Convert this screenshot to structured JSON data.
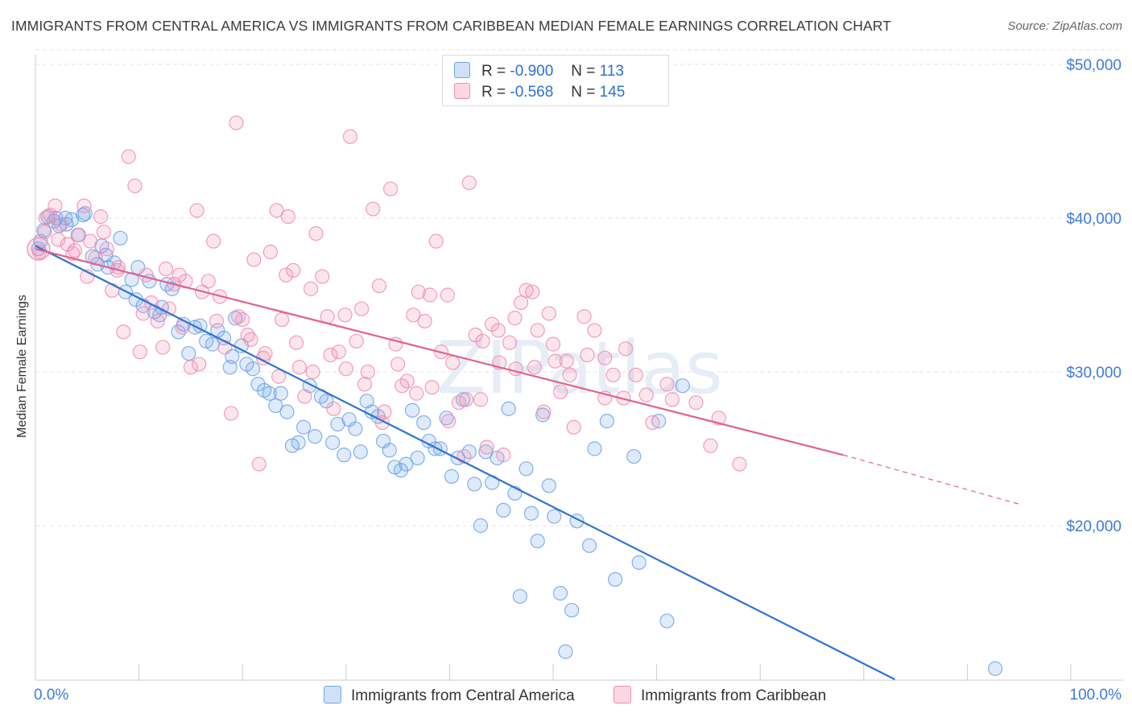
{
  "header": {
    "title": "IMMIGRANTS FROM CENTRAL AMERICA VS IMMIGRANTS FROM CARIBBEAN MEDIAN FEMALE EARNINGS CORRELATION CHART",
    "source": "Source: ZipAtlas.com"
  },
  "watermark": {
    "text": "ZIPatlas"
  },
  "stats": [
    {
      "r_label": "R =",
      "r_value": "-0.900",
      "n_label": "N =",
      "n_value": "113",
      "color": "#6fa3e8"
    },
    {
      "r_label": "R =",
      "r_value": "-0.568",
      "n_label": "N =",
      "n_value": "145",
      "color": "#f08db0"
    }
  ],
  "legend": [
    {
      "label": "Immigrants from Central America",
      "color": "#6fa3e8"
    },
    {
      "label": "Immigrants from Caribbean",
      "color": "#f08db0"
    }
  ],
  "chart_data": {
    "type": "scatter",
    "title": "IMMIGRANTS FROM CENTRAL AMERICA VS IMMIGRANTS FROM CARIBBEAN MEDIAN FEMALE EARNINGS CORRELATION CHART",
    "xlabel": "",
    "ylabel": "Median Female Earnings",
    "xlim": [
      0,
      100
    ],
    "ylim": [
      10000,
      51000
    ],
    "x_tick_labels": [
      "0.0%",
      "100.0%"
    ],
    "y_ticks": [
      20000,
      30000,
      40000,
      50000
    ],
    "y_tick_labels": [
      "$20,000",
      "$30,000",
      "$40,000",
      "$50,000"
    ],
    "grid": true,
    "series": [
      {
        "name": "Immigrants from Central America",
        "color": "#6fa3e8",
        "trend": {
          "x0": 0,
          "y0": 38200,
          "x1": 83,
          "y1": 10000
        },
        "points": [
          [
            0.3,
            38000
          ],
          [
            0.5,
            38500
          ],
          [
            0.8,
            39200
          ],
          [
            1.2,
            40100
          ],
          [
            1.8,
            39800
          ],
          [
            2.3,
            39500
          ],
          [
            2.9,
            40000
          ],
          [
            3.5,
            39900
          ],
          [
            4.1,
            38900
          ],
          [
            4.8,
            40300
          ],
          [
            5.5,
            37500
          ],
          [
            6.0,
            37000
          ],
          [
            6.4,
            38200
          ],
          [
            7.0,
            36800
          ],
          [
            7.6,
            37100
          ],
          [
            8.2,
            38700
          ],
          [
            8.7,
            35200
          ],
          [
            9.3,
            36000
          ],
          [
            9.9,
            36800
          ],
          [
            10.4,
            34300
          ],
          [
            11.0,
            35900
          ],
          [
            11.5,
            33900
          ],
          [
            12.2,
            34200
          ],
          [
            12.7,
            35700
          ],
          [
            13.2,
            35400
          ],
          [
            13.8,
            32600
          ],
          [
            14.3,
            33100
          ],
          [
            14.8,
            31200
          ],
          [
            15.4,
            32900
          ],
          [
            15.9,
            33000
          ],
          [
            16.5,
            32000
          ],
          [
            17.1,
            31800
          ],
          [
            17.6,
            32700
          ],
          [
            18.2,
            32200
          ],
          [
            18.8,
            30300
          ],
          [
            19.3,
            33500
          ],
          [
            19.9,
            31700
          ],
          [
            20.4,
            30500
          ],
          [
            21.0,
            30200
          ],
          [
            21.5,
            29200
          ],
          [
            22.1,
            28800
          ],
          [
            22.6,
            28600
          ],
          [
            23.2,
            27800
          ],
          [
            23.7,
            28600
          ],
          [
            24.3,
            27400
          ],
          [
            24.8,
            25200
          ],
          [
            25.4,
            25400
          ],
          [
            25.9,
            26400
          ],
          [
            26.5,
            29100
          ],
          [
            27.0,
            25800
          ],
          [
            27.6,
            28400
          ],
          [
            28.1,
            28100
          ],
          [
            28.7,
            25400
          ],
          [
            29.2,
            26600
          ],
          [
            29.8,
            24600
          ],
          [
            30.3,
            26900
          ],
          [
            30.9,
            26300
          ],
          [
            31.4,
            24800
          ],
          [
            32.0,
            28100
          ],
          [
            32.5,
            27400
          ],
          [
            33.1,
            27100
          ],
          [
            33.6,
            25500
          ],
          [
            34.2,
            24900
          ],
          [
            34.7,
            23800
          ],
          [
            35.3,
            23600
          ],
          [
            35.8,
            24000
          ],
          [
            36.4,
            27500
          ],
          [
            36.9,
            24400
          ],
          [
            37.5,
            26700
          ],
          [
            38.0,
            25500
          ],
          [
            38.6,
            25000
          ],
          [
            39.1,
            25000
          ],
          [
            39.7,
            27000
          ],
          [
            40.2,
            23200
          ],
          [
            40.8,
            24400
          ],
          [
            41.3,
            28200
          ],
          [
            41.9,
            24800
          ],
          [
            42.4,
            22700
          ],
          [
            43.0,
            20000
          ],
          [
            43.5,
            24800
          ],
          [
            44.1,
            22800
          ],
          [
            44.6,
            24400
          ],
          [
            45.2,
            21000
          ],
          [
            45.7,
            27600
          ],
          [
            46.3,
            22100
          ],
          [
            46.8,
            15400
          ],
          [
            47.4,
            23700
          ],
          [
            47.9,
            20800
          ],
          [
            48.5,
            19000
          ],
          [
            49.0,
            27200
          ],
          [
            49.6,
            22600
          ],
          [
            50.1,
            20600
          ],
          [
            50.7,
            15600
          ],
          [
            51.2,
            11800
          ],
          [
            51.8,
            14500
          ],
          [
            52.3,
            20300
          ],
          [
            53.5,
            18700
          ],
          [
            54.0,
            25000
          ],
          [
            55.2,
            26800
          ],
          [
            56.0,
            16500
          ],
          [
            57.8,
            24500
          ],
          [
            58.3,
            17600
          ],
          [
            60.2,
            26800
          ],
          [
            61.0,
            13800
          ],
          [
            62.5,
            29100
          ],
          [
            92.7,
            10700
          ],
          [
            3.0,
            39600
          ],
          [
            4.6,
            40200
          ],
          [
            2.0,
            40000
          ],
          [
            6.8,
            37600
          ],
          [
            9.7,
            34700
          ],
          [
            12.0,
            33700
          ],
          [
            19.0,
            31000
          ]
        ]
      },
      {
        "name": "Immigrants from Caribbean",
        "color": "#f08db0",
        "trend": {
          "x0": 0,
          "y0": 38000,
          "x1": 78,
          "y1": 24600
        },
        "trend_dashed": {
          "x0": 78,
          "y0": 24600,
          "x1": 95,
          "y1": 21400
        },
        "points": [
          [
            0.4,
            37800
          ],
          [
            0.9,
            39100
          ],
          [
            1.4,
            40200
          ],
          [
            1.9,
            40800
          ],
          [
            2.5,
            39600
          ],
          [
            3.1,
            38300
          ],
          [
            3.6,
            37700
          ],
          [
            4.2,
            38900
          ],
          [
            4.7,
            40800
          ],
          [
            5.3,
            38500
          ],
          [
            5.8,
            37400
          ],
          [
            6.3,
            40100
          ],
          [
            6.9,
            38000
          ],
          [
            7.4,
            35300
          ],
          [
            7.9,
            36600
          ],
          [
            8.5,
            32600
          ],
          [
            9.0,
            44000
          ],
          [
            9.6,
            42100
          ],
          [
            10.1,
            31300
          ],
          [
            10.7,
            36300
          ],
          [
            11.2,
            34500
          ],
          [
            11.8,
            33300
          ],
          [
            12.3,
            31600
          ],
          [
            12.9,
            34100
          ],
          [
            13.4,
            35700
          ],
          [
            13.9,
            36300
          ],
          [
            14.5,
            35900
          ],
          [
            15.0,
            30300
          ],
          [
            15.6,
            40500
          ],
          [
            16.1,
            35200
          ],
          [
            16.7,
            35900
          ],
          [
            17.2,
            38500
          ],
          [
            17.8,
            34900
          ],
          [
            18.3,
            31600
          ],
          [
            18.9,
            27300
          ],
          [
            19.4,
            46200
          ],
          [
            20.0,
            33400
          ],
          [
            20.5,
            32400
          ],
          [
            21.1,
            37300
          ],
          [
            21.6,
            24000
          ],
          [
            22.2,
            31200
          ],
          [
            22.7,
            37800
          ],
          [
            23.3,
            40500
          ],
          [
            23.8,
            33400
          ],
          [
            24.4,
            40100
          ],
          [
            24.9,
            36600
          ],
          [
            25.5,
            30300
          ],
          [
            26.0,
            28400
          ],
          [
            26.6,
            35400
          ],
          [
            27.1,
            39000
          ],
          [
            27.7,
            36200
          ],
          [
            28.2,
            33600
          ],
          [
            28.8,
            27600
          ],
          [
            29.3,
            31300
          ],
          [
            29.9,
            33700
          ],
          [
            30.4,
            45300
          ],
          [
            31.0,
            32000
          ],
          [
            31.5,
            34100
          ],
          [
            32.1,
            30000
          ],
          [
            32.6,
            40600
          ],
          [
            33.2,
            35600
          ],
          [
            33.7,
            27400
          ],
          [
            34.3,
            41900
          ],
          [
            34.8,
            31800
          ],
          [
            35.4,
            29100
          ],
          [
            35.9,
            29400
          ],
          [
            36.5,
            33700
          ],
          [
            37.0,
            35200
          ],
          [
            37.6,
            33300
          ],
          [
            38.1,
            35000
          ],
          [
            38.7,
            38500
          ],
          [
            39.2,
            31300
          ],
          [
            39.8,
            35000
          ],
          [
            40.3,
            30600
          ],
          [
            40.9,
            28000
          ],
          [
            41.4,
            24500
          ],
          [
            41.9,
            42300
          ],
          [
            42.5,
            32400
          ],
          [
            43.0,
            28200
          ],
          [
            43.6,
            25100
          ],
          [
            44.1,
            33100
          ],
          [
            44.7,
            32700
          ],
          [
            45.2,
            24600
          ],
          [
            45.8,
            31900
          ],
          [
            46.3,
            33500
          ],
          [
            46.9,
            34500
          ],
          [
            47.4,
            35300
          ],
          [
            48.0,
            35200
          ],
          [
            48.5,
            32700
          ],
          [
            49.1,
            27400
          ],
          [
            49.6,
            33800
          ],
          [
            50.2,
            30700
          ],
          [
            50.7,
            28700
          ],
          [
            51.3,
            30700
          ],
          [
            52.0,
            26400
          ],
          [
            53.0,
            33600
          ],
          [
            54.0,
            32700
          ],
          [
            55.0,
            28300
          ],
          [
            55.8,
            29800
          ],
          [
            56.8,
            28300
          ],
          [
            58.0,
            29800
          ],
          [
            59.6,
            26700
          ],
          [
            61.5,
            28200
          ],
          [
            63.8,
            28000
          ],
          [
            65.2,
            25200
          ],
          [
            66.0,
            27000
          ],
          [
            68.0,
            24000
          ],
          [
            1.0,
            40000
          ],
          [
            2.2,
            38600
          ],
          [
            3.8,
            37900
          ],
          [
            5.0,
            36200
          ],
          [
            6.6,
            39100
          ],
          [
            8.0,
            36800
          ],
          [
            10.4,
            33800
          ],
          [
            12.6,
            36700
          ],
          [
            14.2,
            32900
          ],
          [
            15.8,
            30500
          ],
          [
            17.5,
            33300
          ],
          [
            19.6,
            33600
          ],
          [
            20.8,
            32100
          ],
          [
            22.0,
            30900
          ],
          [
            23.5,
            29700
          ],
          [
            25.2,
            31900
          ],
          [
            26.8,
            30000
          ],
          [
            28.5,
            31100
          ],
          [
            30.0,
            30200
          ],
          [
            31.8,
            29200
          ],
          [
            33.5,
            26700
          ],
          [
            35.0,
            30500
          ],
          [
            36.8,
            28600
          ],
          [
            38.3,
            29000
          ],
          [
            39.9,
            26800
          ],
          [
            41.6,
            28200
          ],
          [
            43.2,
            32000
          ],
          [
            44.8,
            30600
          ],
          [
            46.4,
            30200
          ],
          [
            48.2,
            30300
          ],
          [
            50.0,
            31800
          ],
          [
            51.6,
            29800
          ],
          [
            53.3,
            31100
          ],
          [
            55.0,
            30900
          ],
          [
            57.0,
            31500
          ],
          [
            59.0,
            28500
          ],
          [
            61.0,
            29200
          ],
          [
            24.2,
            36300
          ]
        ]
      }
    ]
  }
}
